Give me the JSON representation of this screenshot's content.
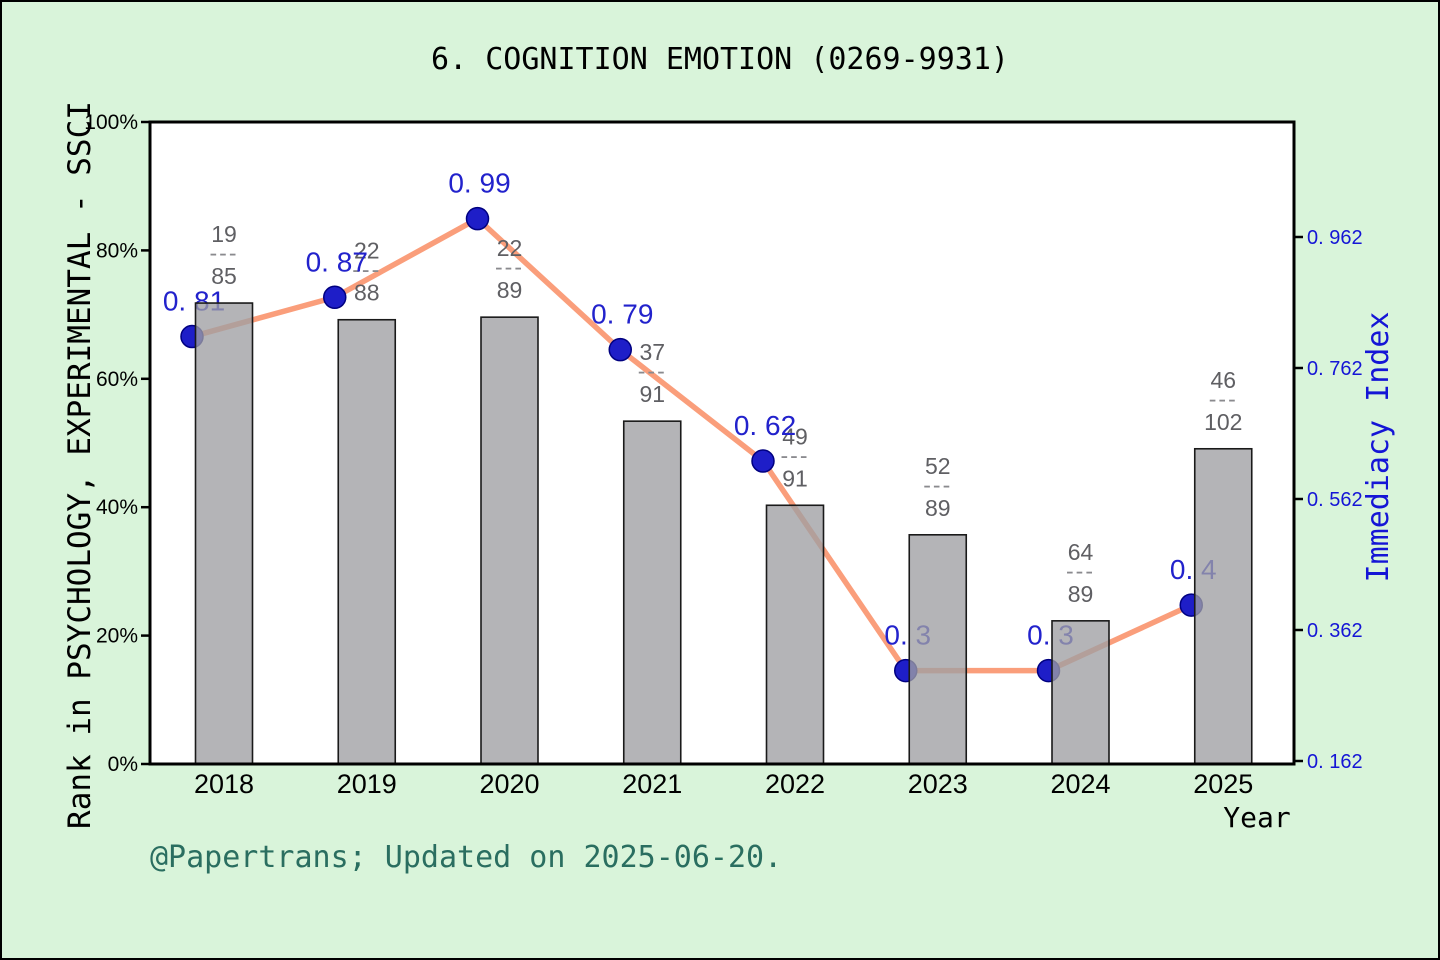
{
  "title": "6. COGNITION EMOTION (0269-9931)",
  "footer_note": "@Papertrans; Updated on 2025-06-20.",
  "colors": {
    "background": "#d9f4da",
    "plot_background": "#ffffff",
    "frame": "#000000",
    "bar_fill": "#9f9fa3",
    "bar_border": "#1a1a1a",
    "line": "#fa9e7b",
    "marker": "#1e1ec8",
    "marker_edge": "#000080",
    "value_label": "#2222cc",
    "right_axis_text": "#1515d6",
    "fraction_label": "#5f5f63",
    "footer_text": "#2a6e60"
  },
  "chart_data": {
    "type": "bar+line",
    "title": "6. COGNITION EMOTION (0269-9931)",
    "categories": [
      "2018",
      "2019",
      "2020",
      "2021",
      "2022",
      "2023",
      "2024",
      "2025"
    ],
    "xlabel": "Year",
    "grid": false,
    "legend": "none",
    "left_axis": {
      "label": "Rank in PSYCHOLOGY, EXPERIMENTAL - SSCI",
      "tick_labels": [
        "0%",
        "20%",
        "40%",
        "60%",
        "80%",
        "100%"
      ],
      "tick_values": [
        0,
        20,
        40,
        60,
        80,
        100
      ],
      "range": [
        0,
        100
      ]
    },
    "right_axis": {
      "label": "Immediacy Index",
      "tick_labels": [
        "0. 162",
        "0. 362",
        "0. 562",
        "0. 762",
        "0. 962"
      ],
      "tick_values": [
        0.162,
        0.362,
        0.562,
        0.762,
        0.962
      ],
      "range": [
        0.162,
        0.962
      ]
    },
    "bars": {
      "name": "Rank percentile bars",
      "values_percent": [
        71.8,
        69.2,
        69.6,
        53.4,
        40.3,
        35.7,
        22.3,
        49.1
      ],
      "fractions": [
        {
          "numerator": "19",
          "denominator": "85"
        },
        {
          "numerator": "22",
          "denominator": "88"
        },
        {
          "numerator": "22",
          "denominator": "89"
        },
        {
          "numerator": "37",
          "denominator": "91"
        },
        {
          "numerator": "49",
          "denominator": "91"
        },
        {
          "numerator": "52",
          "denominator": "89"
        },
        {
          "numerator": "64",
          "denominator": "89"
        },
        {
          "numerator": "46",
          "denominator": "102"
        }
      ]
    },
    "line": {
      "name": "Immediacy Index",
      "values": [
        0.81,
        0.87,
        0.99,
        0.79,
        0.62,
        0.3,
        0.3,
        0.4
      ],
      "point_labels": [
        "0. 81",
        "0. 87",
        "0. 99",
        "0. 79",
        "0. 62",
        "0. 3",
        "0. 3",
        "0. 4"
      ]
    }
  }
}
